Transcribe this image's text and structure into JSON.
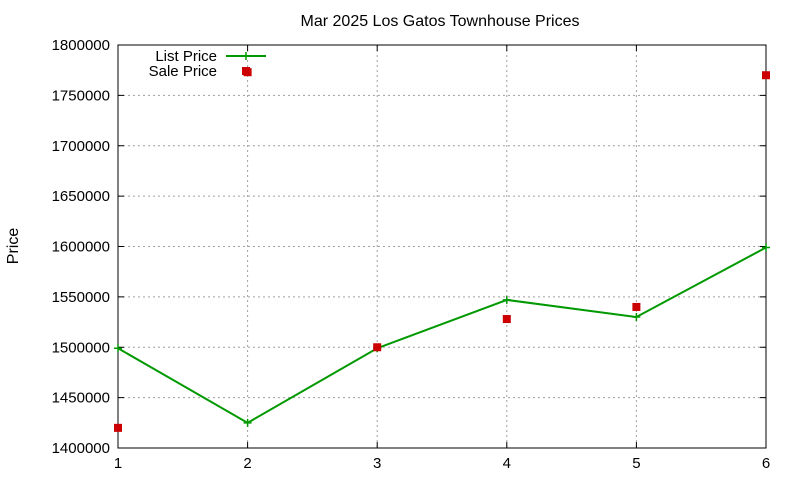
{
  "chart_data": {
    "type": "line",
    "title": "Mar 2025 Los Gatos Townhouse Prices",
    "xlabel": "",
    "ylabel": "Price",
    "x": [
      1,
      2,
      3,
      4,
      5,
      6
    ],
    "xlim": [
      1,
      6
    ],
    "ylim": [
      1400000,
      1800000
    ],
    "x_ticks": [
      "1",
      "2",
      "3",
      "4",
      "5",
      "6"
    ],
    "y_ticks": [
      "1400000",
      "1450000",
      "1500000",
      "1550000",
      "1600000",
      "1650000",
      "1700000",
      "1750000",
      "1800000"
    ],
    "grid": true,
    "legend_position": "top-left",
    "series": [
      {
        "name": "List Price",
        "style": "line-with-plus-markers",
        "color": "#009900",
        "values": [
          1499000,
          1425000,
          1499000,
          1547000,
          1530000,
          1599000
        ]
      },
      {
        "name": "Sale Price",
        "style": "square-markers",
        "color": "#cc0000",
        "values": [
          1420000,
          1773000,
          1500000,
          1528000,
          1540000,
          1770000
        ]
      }
    ]
  }
}
